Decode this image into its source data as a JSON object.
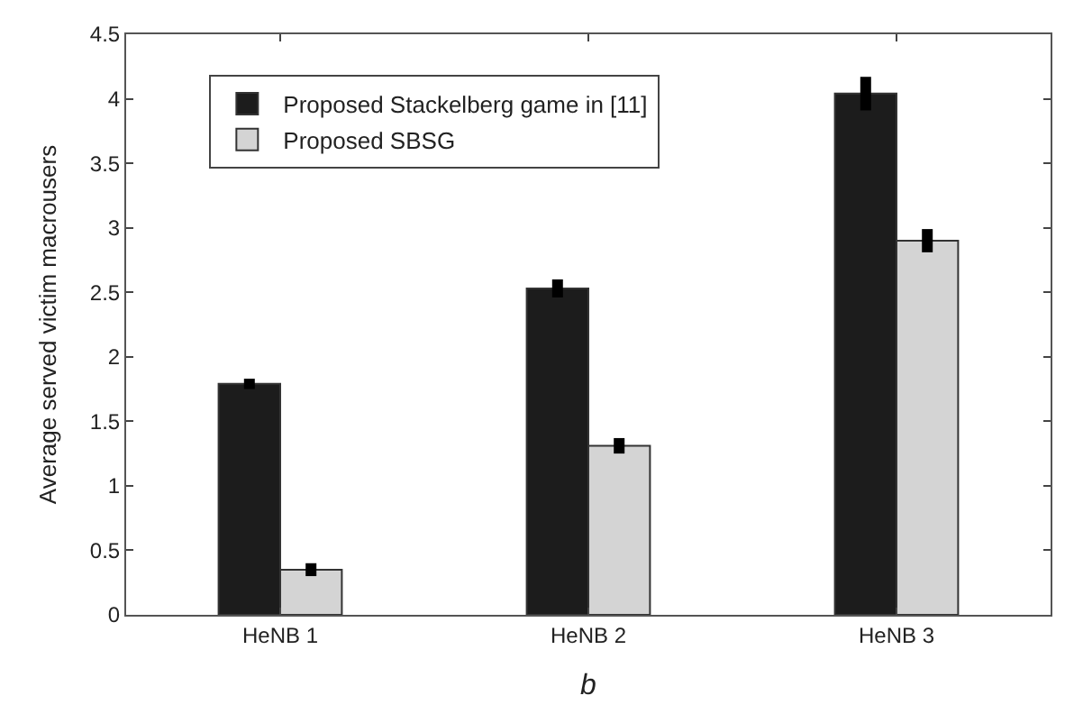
{
  "chart_data": {
    "type": "bar",
    "xlabel": "b",
    "ylabel": "Average served victim macrousers",
    "categories": [
      "HeNB 1",
      "HeNB 2",
      "HeNB 3"
    ],
    "series": [
      {
        "name": "Proposed Stackelberg game in [11]",
        "color": "#1c1c1c",
        "values": [
          1.79,
          2.53,
          4.04
        ],
        "errors": [
          0.04,
          0.07,
          0.13
        ]
      },
      {
        "name": "Proposed SBSG",
        "color": "#d4d4d4",
        "values": [
          0.35,
          1.31,
          2.9
        ],
        "errors": [
          0.05,
          0.06,
          0.09
        ]
      }
    ],
    "ylim": [
      0,
      4.5
    ],
    "yticks": [
      0,
      0.5,
      1,
      1.5,
      2,
      2.5,
      3,
      3.5,
      4,
      4.5
    ],
    "legend": "top left"
  }
}
